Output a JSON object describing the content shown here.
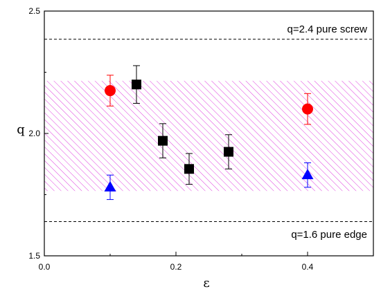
{
  "chart_data": {
    "type": "scatter",
    "xlabel": "ε",
    "ylabel": "q",
    "xlim": [
      0.0,
      0.5
    ],
    "ylim": [
      1.5,
      2.5
    ],
    "x_ticks": [
      {
        "value": 0.0,
        "label": "0.0"
      },
      {
        "value": 0.2,
        "label": "0.2"
      },
      {
        "value": 0.4,
        "label": "0.4"
      }
    ],
    "y_ticks": [
      {
        "value": 1.5,
        "label": "1.5"
      },
      {
        "value": 2.0,
        "label": "2.0"
      },
      {
        "value": 2.5,
        "label": "2.5"
      }
    ],
    "grid": false,
    "legend": "none",
    "band": {
      "y_from": 1.765,
      "y_to": 2.215,
      "color": "#e040e0",
      "style": "diagonal-hatch"
    },
    "reference_lines": [
      {
        "y": 2.385,
        "label": "q=2.4  pure screw",
        "style": "dashed",
        "color": "#000000"
      },
      {
        "y": 1.64,
        "label": "q=1.6  pure edge",
        "style": "dashed",
        "color": "#000000"
      }
    ],
    "series": [
      {
        "marker": "circle",
        "color": "#ff0000",
        "points": [
          {
            "x": 0.1,
            "y": 2.175,
            "err": 0.063
          },
          {
            "x": 0.4,
            "y": 2.1,
            "err": 0.063
          }
        ]
      },
      {
        "marker": "square",
        "color": "#000000",
        "points": [
          {
            "x": 0.14,
            "y": 2.2,
            "err": 0.077
          },
          {
            "x": 0.18,
            "y": 1.97,
            "err": 0.07
          },
          {
            "x": 0.22,
            "y": 1.855,
            "err": 0.063
          },
          {
            "x": 0.28,
            "y": 1.925,
            "err": 0.07
          }
        ]
      },
      {
        "marker": "triangle",
        "color": "#0000ff",
        "points": [
          {
            "x": 0.1,
            "y": 1.78,
            "err": 0.05
          },
          {
            "x": 0.4,
            "y": 1.83,
            "err": 0.05
          }
        ]
      }
    ]
  }
}
